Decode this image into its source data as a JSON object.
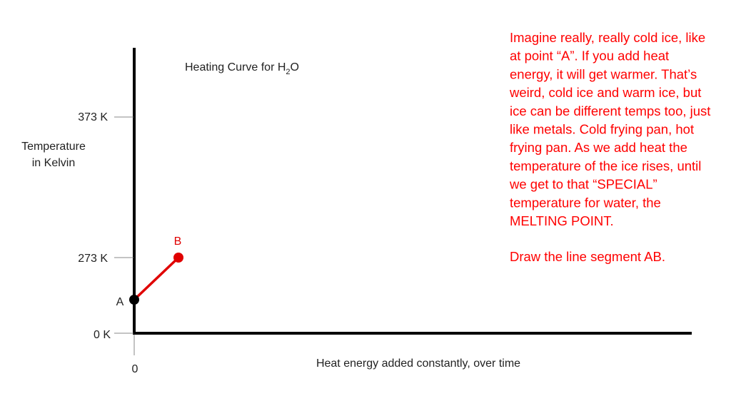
{
  "title": [
    "Heating Curve for H",
    "2",
    "O"
  ],
  "y_axis_label": [
    "Temperature",
    "in Kelvin"
  ],
  "y_ticks": [
    "373 K",
    "273 K",
    "0 K"
  ],
  "x_tick": "0",
  "x_axis_label": "Heat energy added constantly, over time",
  "points": [
    "A",
    "B"
  ],
  "note": [
    "Imagine really, really cold ice, like",
    "at point “A”.  If you add heat",
    "energy, it will get warmer.  That’s",
    "weird, cold ice and warm ice, but",
    "ice can be different temps too, just",
    "like metals.  Cold frying pan, hot",
    "frying pan.  As we add heat the",
    "temperature of the ice rises, until",
    "we get to that “SPECIAL”",
    "temperature for water, the",
    "MELTING POINT."
  ],
  "instruction": "Draw the line segment AB."
}
